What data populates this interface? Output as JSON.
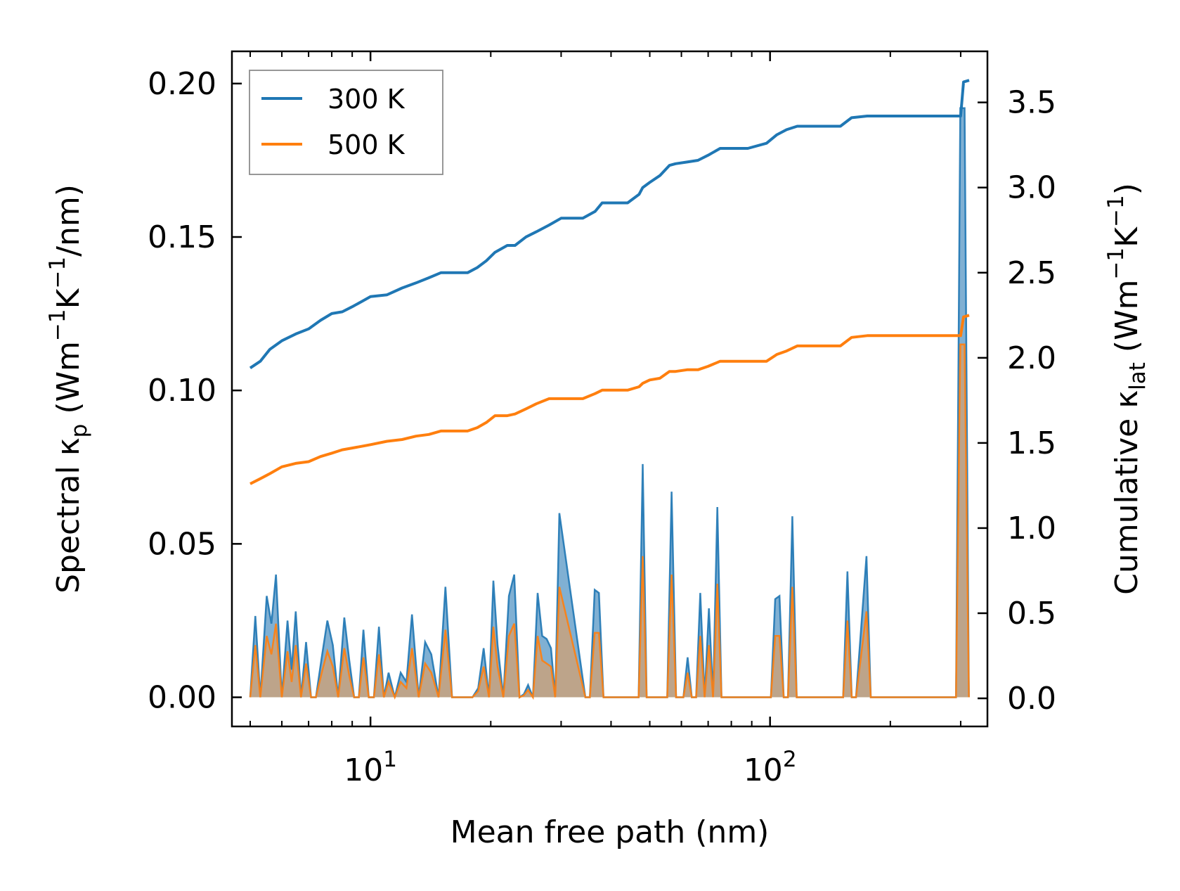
{
  "chart_data": {
    "type": "line",
    "x_scale": "log",
    "xlabel": "Mean free path (nm)",
    "xlim": [
      4.5,
      350
    ],
    "x_ticks": [
      {
        "value": 10,
        "base": "10",
        "exp": "1"
      },
      {
        "value": 100,
        "base": "10",
        "exp": "2"
      }
    ],
    "ylabel_left": {
      "main": "Spectral κ",
      "sub": "p",
      "units_pre": "(Wm",
      "sup1": "−1",
      "units_mid": "K",
      "sup2": "−1",
      "units_post": "/nm)"
    },
    "ylabel_right": {
      "main": "Cumulative κ",
      "sub": "lat",
      "units_pre": "(Wm",
      "sup1": "−1",
      "units_mid": "K",
      "sup2": "−1",
      "units_post": ")"
    },
    "ylim_left": [
      -0.0095,
      0.2105
    ],
    "ylim_right": [
      -0.165,
      3.8
    ],
    "y_ticks_left": [
      "0.00",
      "0.05",
      "0.10",
      "0.15",
      "0.20"
    ],
    "y_ticks_right": [
      "0.0",
      "0.5",
      "1.0",
      "1.5",
      "2.0",
      "2.5",
      "3.0",
      "3.5"
    ],
    "legend": {
      "location": "upper-left",
      "entries": [
        "300 K",
        "500 K"
      ]
    },
    "colors": {
      "300 K": "#1f77b4",
      "500 K": "#ff7f0e",
      "fill_300": "#4a8fc0",
      "fill_500": "#c8a27c"
    },
    "series": [
      {
        "name": "300 K",
        "axis": "right",
        "type": "cumulative",
        "x": [
          5.0,
          5.3,
          5.6,
          6.0,
          6.5,
          7.0,
          7.5,
          8.0,
          8.5,
          9.0,
          9.5,
          10.0,
          11.0,
          12.0,
          13.0,
          14.0,
          15.0,
          16.0,
          17.5,
          18.5,
          19.5,
          20.5,
          22.0,
          23.0,
          24.5,
          26.0,
          28.0,
          30.0,
          32.0,
          34.0,
          36.5,
          38.0,
          41.0,
          44.0,
          47.0,
          48.0,
          50.0,
          53.0,
          56.0,
          58.0,
          62.0,
          66.0,
          70.0,
          75.0,
          80.0,
          88.0,
          98.0,
          104.0,
          110.0,
          117.0,
          130.0,
          150.0,
          160.0,
          175.0,
          200.0,
          250.0,
          300.0,
          305.0,
          315.0
        ],
        "y": [
          1.94,
          1.98,
          2.05,
          2.1,
          2.14,
          2.17,
          2.22,
          2.26,
          2.27,
          2.3,
          2.33,
          2.36,
          2.37,
          2.41,
          2.44,
          2.47,
          2.5,
          2.5,
          2.5,
          2.53,
          2.57,
          2.62,
          2.66,
          2.66,
          2.71,
          2.74,
          2.78,
          2.82,
          2.82,
          2.82,
          2.86,
          2.91,
          2.91,
          2.91,
          2.96,
          3.0,
          3.03,
          3.07,
          3.13,
          3.14,
          3.15,
          3.16,
          3.19,
          3.23,
          3.23,
          3.23,
          3.26,
          3.31,
          3.34,
          3.36,
          3.36,
          3.36,
          3.41,
          3.42,
          3.42,
          3.42,
          3.42,
          3.62,
          3.63
        ]
      },
      {
        "name": "500 K",
        "axis": "right",
        "type": "cumulative",
        "x": [
          5.0,
          5.3,
          5.6,
          6.0,
          6.5,
          7.0,
          7.5,
          8.0,
          8.5,
          9.0,
          9.5,
          10.0,
          11.0,
          12.0,
          13.0,
          14.0,
          15.0,
          16.0,
          17.5,
          18.5,
          19.5,
          20.5,
          22.0,
          23.0,
          24.5,
          26.0,
          28.0,
          30.0,
          32.0,
          34.0,
          36.5,
          38.0,
          41.0,
          44.0,
          47.0,
          48.0,
          50.0,
          53.0,
          56.0,
          58.0,
          62.0,
          66.0,
          70.0,
          75.0,
          80.0,
          88.0,
          98.0,
          104.0,
          110.0,
          117.0,
          130.0,
          150.0,
          160.0,
          175.0,
          200.0,
          250.0,
          300.0,
          305.0,
          315.0
        ],
        "y": [
          1.26,
          1.29,
          1.32,
          1.36,
          1.38,
          1.39,
          1.42,
          1.44,
          1.46,
          1.47,
          1.48,
          1.49,
          1.51,
          1.52,
          1.54,
          1.55,
          1.57,
          1.57,
          1.57,
          1.59,
          1.62,
          1.66,
          1.66,
          1.67,
          1.7,
          1.73,
          1.76,
          1.76,
          1.76,
          1.76,
          1.79,
          1.81,
          1.81,
          1.81,
          1.83,
          1.85,
          1.87,
          1.88,
          1.92,
          1.92,
          1.93,
          1.93,
          1.95,
          1.98,
          1.98,
          1.98,
          1.98,
          2.02,
          2.04,
          2.07,
          2.07,
          2.07,
          2.12,
          2.13,
          2.13,
          2.13,
          2.13,
          2.24,
          2.25
        ]
      },
      {
        "name": "300 K",
        "axis": "left",
        "type": "spectral",
        "x": [
          5.0,
          5.15,
          5.3,
          5.5,
          5.65,
          5.8,
          6.0,
          6.2,
          6.35,
          6.5,
          6.7,
          6.9,
          7.1,
          7.3,
          7.55,
          7.8,
          8.05,
          8.3,
          8.6,
          8.85,
          9.1,
          9.35,
          9.6,
          9.9,
          10.2,
          10.5,
          10.8,
          11.1,
          11.5,
          11.9,
          12.3,
          12.7,
          13.2,
          13.7,
          14.2,
          14.8,
          15.4,
          16.0,
          16.6,
          17.3,
          18.0,
          18.6,
          19.2,
          19.8,
          20.3,
          20.8,
          21.5,
          22.2,
          22.9,
          23.6,
          24.2,
          24.8,
          25.5,
          26.2,
          26.9,
          27.6,
          28.3,
          29.0,
          29.7,
          34.5,
          35.4,
          36.4,
          37.3,
          38.3,
          45.8,
          46.9,
          48.0,
          49.1,
          50.4,
          54.0,
          55.3,
          56.7,
          58.2,
          60.7,
          62.2,
          63.7,
          65.3,
          66.9,
          68.6,
          70.3,
          72.0,
          73.8,
          75.6,
          77.5,
          100.5,
          103.0,
          105.6,
          108.2,
          110.9,
          113.7,
          116.6,
          119.5,
          152.4,
          156.2,
          160.1,
          164.1,
          174.3,
          178.7,
          183.2,
          292.0,
          299.3,
          306.8,
          314.5
        ],
        "y": [
          0.0,
          0.0265,
          0.0,
          0.033,
          0.024,
          0.04,
          0.0,
          0.025,
          0.009,
          0.028,
          0.0,
          0.018,
          0.0,
          0.0,
          0.013,
          0.025,
          0.017,
          0.0,
          0.026,
          0.012,
          0.0,
          0.0,
          0.022,
          0.0,
          0.0,
          0.023,
          0.0,
          0.008,
          0.0,
          0.008,
          0.005,
          0.027,
          0.0,
          0.018,
          0.014,
          0.0,
          0.036,
          0.0,
          0.0,
          0.0,
          0.0,
          0.003,
          0.016,
          0.0,
          0.038,
          0.017,
          0.0,
          0.033,
          0.04,
          0.0,
          0.001,
          0.004,
          0.0,
          0.034,
          0.02,
          0.019,
          0.016,
          0.0,
          0.06,
          0.0,
          0.0,
          0.035,
          0.034,
          0.0,
          0.0,
          0.0,
          0.076,
          0.0,
          0.0,
          0.0,
          0.0,
          0.067,
          0.0,
          0.0,
          0.013,
          0.0,
          0.0,
          0.034,
          0.0,
          0.029,
          0.0,
          0.062,
          0.0,
          0.0,
          0.0,
          0.032,
          0.033,
          0.0,
          0.0,
          0.059,
          0.0,
          0.0,
          0.0,
          0.041,
          0.0,
          0.0,
          0.046,
          0.0,
          0.0,
          0.0,
          0.192,
          0.192,
          0.0
        ]
      },
      {
        "name": "500 K",
        "axis": "left",
        "type": "spectral",
        "x": [
          5.0,
          5.15,
          5.3,
          5.5,
          5.65,
          5.8,
          6.0,
          6.2,
          6.35,
          6.5,
          6.7,
          6.9,
          7.1,
          7.3,
          7.55,
          7.8,
          8.05,
          8.3,
          8.6,
          8.85,
          9.1,
          9.35,
          9.6,
          9.9,
          10.2,
          10.5,
          10.8,
          11.1,
          11.5,
          11.9,
          12.3,
          12.7,
          13.2,
          13.7,
          14.2,
          14.8,
          15.4,
          16.0,
          16.6,
          17.3,
          18.0,
          18.6,
          19.2,
          19.8,
          20.3,
          20.8,
          21.5,
          22.2,
          22.9,
          23.6,
          24.2,
          24.8,
          25.5,
          26.2,
          26.9,
          27.6,
          28.3,
          29.0,
          29.7,
          34.5,
          35.4,
          36.4,
          37.3,
          38.3,
          45.8,
          46.9,
          48.0,
          49.1,
          50.4,
          54.0,
          55.3,
          56.7,
          58.2,
          60.7,
          62.2,
          63.7,
          65.3,
          66.9,
          68.6,
          70.3,
          72.0,
          73.8,
          75.6,
          77.5,
          100.5,
          103.0,
          105.6,
          108.2,
          110.9,
          113.7,
          116.6,
          119.5,
          152.4,
          156.2,
          160.1,
          164.1,
          174.3,
          178.7,
          183.2,
          292.0,
          299.3,
          306.8,
          314.5
        ],
        "y": [
          0.0,
          0.017,
          0.0,
          0.02,
          0.014,
          0.024,
          0.0,
          0.015,
          0.005,
          0.017,
          0.0,
          0.011,
          0.0,
          0.0,
          0.008,
          0.015,
          0.01,
          0.0,
          0.016,
          0.007,
          0.0,
          0.0,
          0.013,
          0.0,
          0.0,
          0.014,
          0.0,
          0.005,
          0.0,
          0.005,
          0.003,
          0.016,
          0.0,
          0.011,
          0.008,
          0.0,
          0.022,
          0.0,
          0.0,
          0.0,
          0.0,
          0.002,
          0.01,
          0.0,
          0.023,
          0.01,
          0.0,
          0.02,
          0.024,
          0.0,
          0.0006,
          0.0024,
          0.0,
          0.02,
          0.012,
          0.011,
          0.01,
          0.0,
          0.036,
          0.0,
          0.0,
          0.021,
          0.021,
          0.0,
          0.0,
          0.0,
          0.046,
          0.0,
          0.0,
          0.0,
          0.0,
          0.04,
          0.0,
          0.0,
          0.008,
          0.0,
          0.0,
          0.02,
          0.0,
          0.017,
          0.0,
          0.037,
          0.0,
          0.0,
          0.0,
          0.02,
          0.02,
          0.0,
          0.0,
          0.036,
          0.0,
          0.0,
          0.0,
          0.025,
          0.0,
          0.0,
          0.028,
          0.0,
          0.0,
          0.0,
          0.115,
          0.115,
          0.0
        ]
      }
    ]
  }
}
